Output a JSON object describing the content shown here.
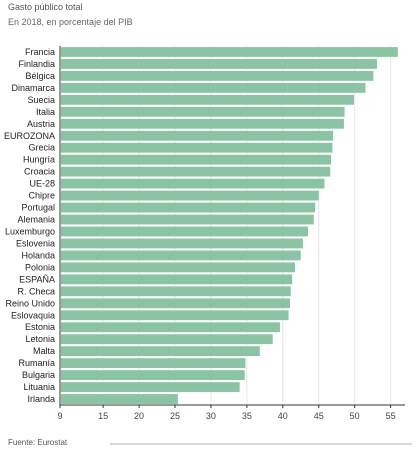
{
  "title": "Gasto público total",
  "subtitle": "En 2018, en porcentaje del PIB",
  "source": "Fuente: Eurostat",
  "colors": {
    "bar": "#8ac5a3",
    "axis": "#333333",
    "grid": "#e6e6e6"
  },
  "chart_data": {
    "type": "bar",
    "orientation": "horizontal",
    "categories": [
      "Francia",
      "Finlandia",
      "Bélgica",
      "Dinamarca",
      "Suecia",
      "Italia",
      "Austria",
      "EUROZONA",
      "Grecia",
      "Hungría",
      "Croacia",
      "UE-28",
      "Chipre",
      "Portugal",
      "Alemania",
      "Luxemburgo",
      "Eslovenia",
      "Holanda",
      "Polonia",
      "ESPAÑA",
      "R. Checa",
      "Reino Unido",
      "Eslovaquia",
      "Estonia",
      "Letonia",
      "Malta",
      "Rumanía",
      "Bulgaria",
      "Lituania",
      "Irlanda"
    ],
    "values": [
      56.0,
      53.1,
      52.6,
      51.5,
      49.9,
      48.6,
      48.5,
      47.0,
      46.9,
      46.7,
      46.6,
      45.8,
      45.0,
      44.5,
      44.3,
      43.5,
      42.8,
      42.5,
      41.7,
      41.3,
      41.1,
      41.0,
      40.8,
      39.6,
      38.6,
      36.8,
      34.8,
      34.7,
      34.0,
      25.4
    ],
    "xticks": [
      9,
      15,
      20,
      25,
      30,
      35,
      40,
      45,
      50,
      55
    ],
    "xlim": [
      9,
      57
    ],
    "grid": true,
    "legend": "none"
  }
}
